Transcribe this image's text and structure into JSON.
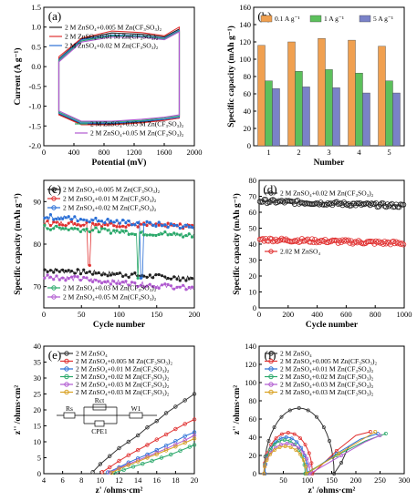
{
  "chart_data": [
    {
      "id": "a",
      "panel_label": "(a)",
      "type": "line",
      "xlabel": "Potential (mV)",
      "ylabel": "Current (A g⁻¹)",
      "xlim": [
        0,
        2000
      ],
      "ylim": [
        -2.0,
        1.5
      ],
      "xticks": [
        "0",
        "400",
        "800",
        "1200",
        "1600",
        "2000"
      ],
      "yticks": [
        "-2.0",
        "-1.5",
        "-1.0",
        "-0.5",
        "0.0",
        "0.5",
        "1.0",
        "1.5"
      ],
      "legend_top": [
        "2 M ZnSO₄+0.005 M Zn(CF₃SO₃)₂",
        "2 M ZnSO₄+0.01 M Zn(CF₃SO₃)₂",
        "2 M ZnSO₄+0.02 M Zn(CF₃SO₃)₂"
      ],
      "legend_bottom": [
        "2 M ZnSO₄+0.03 M Zn(CF₃SO₃)₂",
        "2 M ZnSO₄+0.05 M Zn(CF₃SO₃)₂"
      ],
      "series": [
        {
          "name": "2 M ZnSO₄+0.005 M Zn(CF₃SO₃)₂",
          "color": "#222222",
          "x": [
            200,
            500,
            900,
            1300,
            1600,
            1800,
            1800,
            1600,
            1300,
            900,
            500,
            200,
            200
          ],
          "y": [
            0.2,
            0.7,
            0.85,
            0.82,
            0.75,
            0.95,
            -1.3,
            -1.35,
            -1.4,
            -1.45,
            -1.45,
            -1.2,
            0.2
          ]
        },
        {
          "name": "2 M ZnSO₄+0.01 M Zn(CF₃SO₃)₂",
          "color": "#e03030",
          "x": [
            200,
            500,
            900,
            1300,
            1600,
            1800,
            1800,
            1600,
            1300,
            900,
            500,
            200,
            200
          ],
          "y": [
            0.25,
            0.72,
            0.9,
            0.86,
            0.78,
            1.0,
            -1.3,
            -1.36,
            -1.42,
            -1.47,
            -1.47,
            -1.22,
            0.25
          ]
        },
        {
          "name": "2 M ZnSO₄+0.02 M Zn(CF₃SO₃)₂",
          "color": "#2a6fd6",
          "x": [
            200,
            500,
            900,
            1300,
            1600,
            1800,
            1800,
            1600,
            1300,
            900,
            500,
            200,
            200
          ],
          "y": [
            0.18,
            0.68,
            0.8,
            0.78,
            0.72,
            0.92,
            -1.28,
            -1.33,
            -1.38,
            -1.43,
            -1.43,
            -1.18,
            0.18
          ]
        },
        {
          "name": "2 M ZnSO₄+0.03 M Zn(CF₃SO₃)₂",
          "color": "#2aa86a",
          "x": [
            200,
            500,
            900,
            1300,
            1600,
            1800,
            1800,
            1600,
            1300,
            900,
            500,
            200,
            200
          ],
          "y": [
            0.15,
            0.65,
            0.78,
            0.76,
            0.7,
            0.9,
            -1.25,
            -1.3,
            -1.36,
            -1.4,
            -1.4,
            -1.15,
            0.15
          ]
        },
        {
          "name": "2 M ZnSO₄+0.05 M Zn(CF₃SO₃)₂",
          "color": "#b05ad0",
          "x": [
            200,
            500,
            900,
            1300,
            1600,
            1800,
            1800,
            1600,
            1300,
            900,
            500,
            200,
            200
          ],
          "y": [
            0.12,
            0.62,
            0.75,
            0.74,
            0.68,
            0.88,
            -1.22,
            -1.28,
            -1.33,
            -1.38,
            -1.38,
            -1.12,
            0.12
          ]
        }
      ]
    },
    {
      "id": "b",
      "panel_label": "(b)",
      "type": "bar",
      "xlabel": "Number",
      "ylabel": "Specific capacity (mAh g⁻¹)",
      "categories": [
        "1",
        "2",
        "3",
        "4",
        "5"
      ],
      "ylim": [
        0,
        160
      ],
      "yticks": [
        "0",
        "20",
        "40",
        "60",
        "80",
        "100",
        "120",
        "140",
        "160"
      ],
      "series": [
        {
          "name": "0.1 A g⁻¹",
          "color": "#f0a050",
          "values": [
            116,
            120,
            124,
            122,
            115
          ]
        },
        {
          "name": "1 A g⁻¹",
          "color": "#5cc05c",
          "values": [
            75,
            86,
            88,
            84,
            75
          ]
        },
        {
          "name": "5 A g⁻¹",
          "color": "#7a82c8",
          "values": [
            66,
            68,
            67,
            61,
            61
          ]
        }
      ]
    },
    {
      "id": "c",
      "panel_label": "(c)",
      "type": "scatter",
      "xlabel": "Cycle number",
      "ylabel": "Specific capacity (mAh g⁻¹)",
      "xlim": [
        0,
        200
      ],
      "ylim": [
        65,
        95
      ],
      "xticks": [
        "0",
        "50",
        "100",
        "150",
        "200"
      ],
      "yticks": [
        "70",
        "80",
        "90"
      ],
      "legend_top": [
        "2 M ZnSO₄+0.005 M Zn(CF₃SO₃)₂",
        "2 M ZnSO₄+0.01 M Zn(CF₃SO₃)₂",
        "2 M ZnSO₄+0.02 M Zn(CF₃SO₃)₂"
      ],
      "legend_bottom": [
        "2 M ZnSO₄+0.03 M Zn(CF₃SO₃)₂",
        "2 M ZnSO₄+0.05 M Zn(CF₃SO₃)₂"
      ],
      "series": [
        {
          "name": "2 M ZnSO₄+0.005 M Zn(CF₃SO₃)₂",
          "color": "#222222",
          "start": 74.0,
          "end": 71.8,
          "dips": []
        },
        {
          "name": "2 M ZnSO₄+0.01 M Zn(CF₃SO₃)₂",
          "color": "#e03030",
          "start": 85.0,
          "end": 84.2,
          "dips": [
            [
              60,
              75
            ]
          ]
        },
        {
          "name": "2 M ZnSO₄+0.02 M Zn(CF₃SO₃)₂",
          "color": "#2a6fd6",
          "start": 86.5,
          "end": 84.0,
          "dips": [
            [
              130,
              72
            ]
          ]
        },
        {
          "name": "2 M ZnSO₄+0.03 M Zn(CF₃SO₃)₂",
          "color": "#2aa86a",
          "start": 84.0,
          "end": 82.0,
          "dips": [
            [
              125,
              72
            ]
          ]
        },
        {
          "name": "2 M ZnSO₄+0.05 M Zn(CF₃SO₃)₂",
          "color": "#b05ad0",
          "start": 72.5,
          "end": 69.5,
          "dips": []
        }
      ]
    },
    {
      "id": "d",
      "panel_label": "(d)",
      "type": "scatter",
      "xlabel": "Cycle number",
      "ylabel": "Specific capacity (mAh g⁻¹)",
      "xlim": [
        0,
        1000
      ],
      "ylim": [
        0,
        80
      ],
      "xticks": [
        "0",
        "200",
        "400",
        "600",
        "800",
        "1000"
      ],
      "yticks": [
        "0",
        "10",
        "20",
        "30",
        "40",
        "50",
        "60",
        "70",
        "80"
      ],
      "series": [
        {
          "name": "2 M ZnSO₄+0.02 M Zn(CF₃SO₃)₂",
          "color": "#222222",
          "start": 67.0,
          "end": 64.0
        },
        {
          "name": "2.02 M ZnSO₄",
          "color": "#e03030",
          "start": 43.0,
          "end": 40.5
        }
      ]
    },
    {
      "id": "e",
      "panel_label": "(e)",
      "type": "line",
      "xlabel": "z' /ohms·cm²",
      "ylabel": "z'' /ohms·cm²",
      "xlim": [
        4,
        20
      ],
      "ylim": [
        0,
        40
      ],
      "xticks": [
        "4",
        "6",
        "8",
        "10",
        "12",
        "14",
        "16",
        "18",
        "20"
      ],
      "yticks": [
        "0",
        "5",
        "10",
        "15",
        "20",
        "25",
        "30",
        "35",
        "40"
      ],
      "circuit_labels": [
        "Rs",
        "Rct",
        "CPE1",
        "W1"
      ],
      "series": [
        {
          "name": "2 M ZnSO₄",
          "color": "#333333",
          "x": [
            9.2,
            10,
            11,
            12,
            13,
            14,
            15,
            16,
            17,
            18,
            19,
            20
          ],
          "y": [
            0.5,
            3.0,
            5.5,
            8.0,
            10.0,
            12.0,
            14.5,
            16.5,
            19.0,
            21.0,
            23.0,
            25.0
          ]
        },
        {
          "name": "2 M ZnSO₄+0.005 M Zn(CF₃SO₃)₂",
          "color": "#e03030",
          "x": [
            10.2,
            11,
            12,
            13,
            14,
            15,
            16,
            17,
            18,
            19,
            20
          ],
          "y": [
            0.5,
            2.0,
            4.0,
            5.8,
            7.4,
            9.0,
            10.7,
            12.3,
            14.0,
            15.6,
            17.0
          ]
        },
        {
          "name": "2 M ZnSO₄+0.01 M Zn(CF₃SO₃)₂",
          "color": "#2a6fd6",
          "x": [
            10.8,
            12,
            13,
            14,
            15,
            16,
            17,
            18,
            19,
            20
          ],
          "y": [
            0.4,
            2.0,
            3.5,
            4.8,
            6.0,
            7.4,
            8.8,
            10.2,
            11.8,
            13.0
          ]
        },
        {
          "name": "2 M ZnSO₄+0.02 M Zn(CF₃SO₃)₂",
          "color": "#2aa86a",
          "x": [
            11.5,
            12.5,
            13.5,
            14.5,
            15.5,
            16.5,
            17.5,
            18.5,
            19.5,
            20
          ],
          "y": [
            0.3,
            1.2,
            2.2,
            3.1,
            4.0,
            5.0,
            6.0,
            7.2,
            8.4,
            9.0
          ]
        },
        {
          "name": "2 M ZnSO₄+0.03 M Zn(CF₃SO₃)₂",
          "color": "#b05ad0",
          "x": [
            11.0,
            12,
            13,
            14,
            15,
            16,
            17,
            18,
            19,
            20
          ],
          "y": [
            0.4,
            1.7,
            3.0,
            4.2,
            5.4,
            6.6,
            7.8,
            9.2,
            10.5,
            12.0
          ]
        },
        {
          "name": "2 M ZnSO₄+0.03 M Zn(CF₃SO₃)₂",
          "color": "#d8a020",
          "x": [
            11.2,
            12,
            13,
            14,
            15,
            16,
            17,
            18,
            19,
            20
          ],
          "y": [
            0.3,
            1.5,
            2.7,
            3.8,
            5.0,
            6.1,
            7.3,
            8.5,
            9.7,
            11.0
          ]
        }
      ]
    },
    {
      "id": "f",
      "panel_label": "(f)",
      "type": "line",
      "xlabel": "z' /ohms·cm²",
      "ylabel": "z'' /ohms·cm²",
      "xlim": [
        0,
        300
      ],
      "ylim": [
        0,
        140
      ],
      "xticks": [
        "50",
        "100",
        "150",
        "200",
        "250",
        "300"
      ],
      "yticks": [
        "0",
        "20",
        "40",
        "60",
        "80",
        "100",
        "120",
        "140"
      ],
      "series": [
        {
          "name": "2 M ZnSO₄",
          "color": "#333333",
          "arc": [
            10,
            155
          ],
          "height": 72,
          "tail": [
            [
              155,
              0
            ],
            [
              170,
              12
            ],
            [
              185,
              30
            ]
          ]
        },
        {
          "name": "2 M ZnSO₄+0.005 M Zn(CF₃SO₃)₂",
          "color": "#e03030",
          "arc": [
            10,
            110
          ],
          "height": 45,
          "tail": [
            [
              110,
              0
            ],
            [
              160,
              25
            ],
            [
              200,
              42
            ],
            [
              230,
              46
            ]
          ]
        },
        {
          "name": "2 M ZnSO₄+0.01 M Zn(CF₃SO₃)₂",
          "color": "#2a6fd6",
          "arc": [
            12,
            100
          ],
          "height": 40,
          "tail": [
            [
              100,
              0
            ],
            [
              160,
              22
            ],
            [
              210,
              38
            ],
            [
              245,
              44
            ]
          ]
        },
        {
          "name": "2 M ZnSO₄+0.02 M Zn(CF₃SO₃)₂",
          "color": "#2aa86a",
          "arc": [
            10,
            95
          ],
          "height": 37,
          "tail": [
            [
              95,
              0
            ],
            [
              160,
              20
            ],
            [
              220,
              36
            ],
            [
              262,
              44
            ]
          ]
        },
        {
          "name": "2 M ZnSO₄+0.03 M Zn(CF₃SO₃)₂",
          "color": "#b05ad0",
          "arc": [
            10,
            105
          ],
          "height": 33,
          "tail": [
            [
              105,
              0
            ],
            [
              170,
              20
            ],
            [
              220,
              35
            ],
            [
              250,
              42
            ]
          ]
        },
        {
          "name": "2 M ZnSO₄+0.03 M Zn(CF₃SO₃)₂",
          "color": "#d8a020",
          "arc": [
            10,
            98
          ],
          "height": 30,
          "tail": [
            [
              98,
              0
            ],
            [
              165,
              22
            ],
            [
              215,
              38
            ],
            [
              240,
              46
            ]
          ]
        }
      ]
    }
  ]
}
